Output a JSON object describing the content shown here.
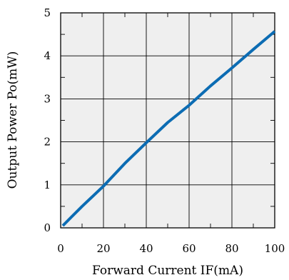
{
  "chart_data": {
    "type": "line",
    "xlabel": "Forward Current IF(mA)",
    "ylabel": "Output Power Po(mW)",
    "xlim": [
      0,
      100
    ],
    "ylim": [
      0,
      5
    ],
    "x_ticks": [
      "0",
      "20",
      "40",
      "60",
      "80",
      "100"
    ],
    "y_ticks": [
      "0",
      "1",
      "2",
      "3",
      "4",
      "5"
    ],
    "grid": true,
    "legend": "none",
    "series": [
      {
        "x": [
          1,
          5,
          10,
          20,
          30,
          40,
          50,
          60,
          70,
          80,
          90,
          100
        ],
        "y": [
          0.05,
          0.25,
          0.5,
          0.97,
          1.5,
          1.98,
          2.45,
          2.85,
          3.3,
          3.72,
          4.15,
          4.57
        ]
      }
    ],
    "colors": {
      "line": "#0c6cb3",
      "plot_background": "#efefef",
      "grid": "#000000"
    }
  }
}
